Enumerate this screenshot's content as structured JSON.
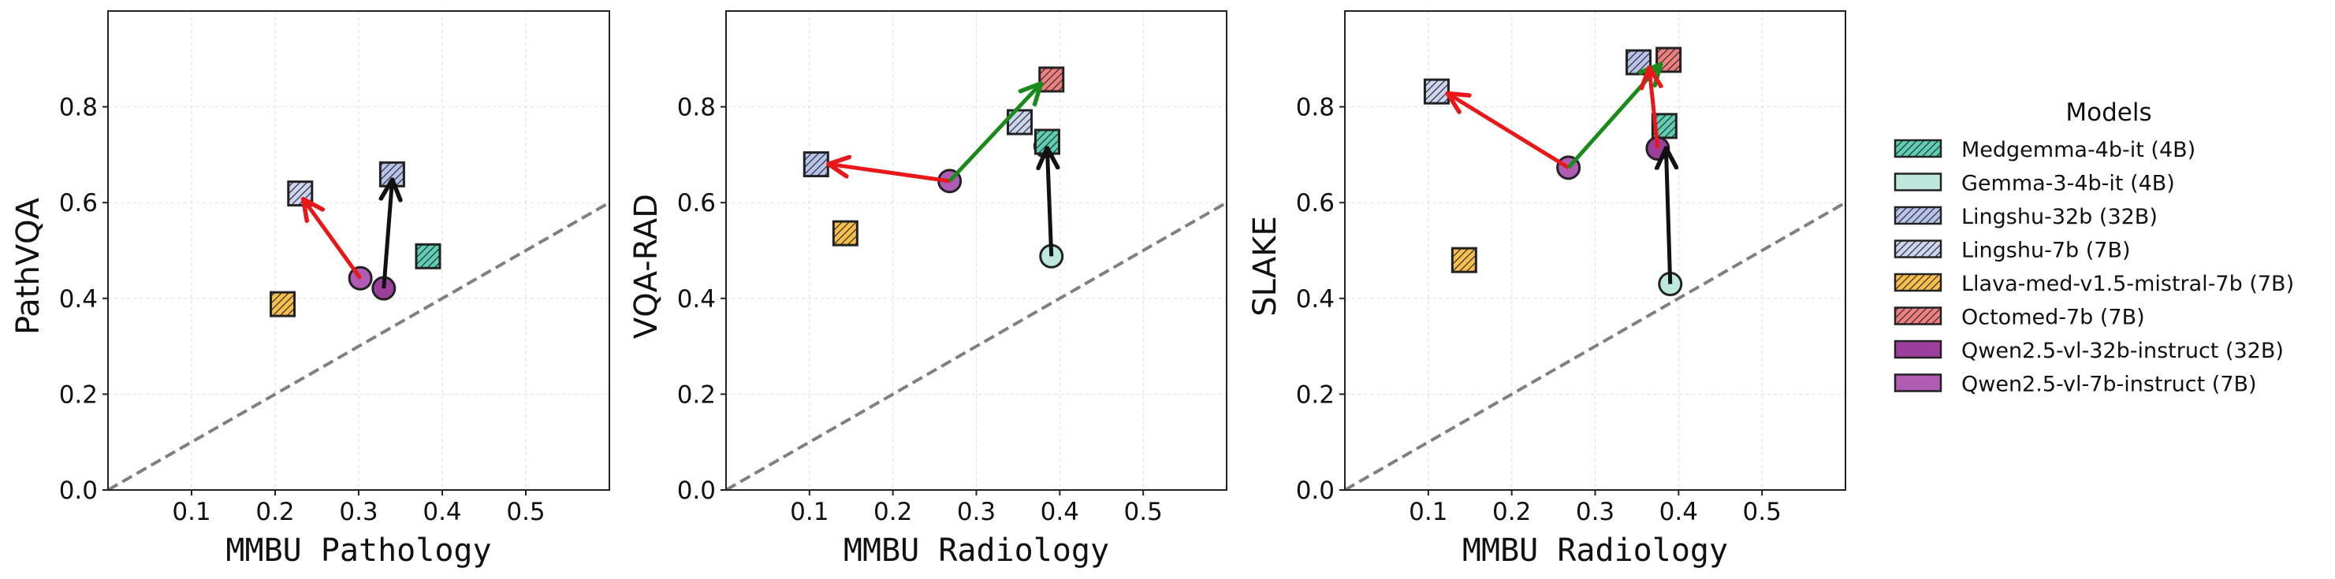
{
  "chart_data": {
    "legend": {
      "title": "Models",
      "placement": "right",
      "items": [
        {
          "name": "Medgemma-4b-it (4B)",
          "color": "#5ccfb4",
          "marker": "square",
          "hatch": true
        },
        {
          "name": "Gemma-3-4b-it (4B)",
          "color": "#bfe8dc",
          "marker": "circle",
          "hatch": false
        },
        {
          "name": "Lingshu-32b (32B)",
          "color": "#b8c3ec",
          "marker": "square",
          "hatch": true
        },
        {
          "name": "Lingshu-7b (7B)",
          "color": "#cdd5f2",
          "marker": "square",
          "hatch": true
        },
        {
          "name": "Llava-med-v1.5-mistral-7b (7B)",
          "color": "#f8bf4c",
          "marker": "square",
          "hatch": true
        },
        {
          "name": "Octomed-7b (7B)",
          "color": "#f07f7f",
          "marker": "square",
          "hatch": true
        },
        {
          "name": "Qwen2.5-vl-32b-instruct (32B)",
          "color": "#9c3f9c",
          "marker": "circle",
          "hatch": false
        },
        {
          "name": "Qwen2.5-vl-7b-instruct (7B)",
          "color": "#b05cb4",
          "marker": "circle",
          "hatch": false
        }
      ]
    },
    "panels": [
      {
        "type": "scatter",
        "xlabel": "MMBU Pathology",
        "ylabel": "PathVQA",
        "xlim": [
          0,
          0.6
        ],
        "ylim": [
          0,
          1.0
        ],
        "xticks": [
          "0.1",
          "0.2",
          "0.3",
          "0.4",
          "0.5"
        ],
        "yticks": [
          "0.0",
          "0.2",
          "0.4",
          "0.6",
          "0.8"
        ],
        "grid": true,
        "diagonal": true,
        "points": [
          {
            "model": "Llava-med-v1.5-mistral-7b (7B)",
            "x": 0.209,
            "y": 0.388
          },
          {
            "model": "Medgemma-4b-it (4B)",
            "x": 0.383,
            "y": 0.488
          },
          {
            "model": "Qwen2.5-vl-7b-instruct (7B)",
            "x": 0.302,
            "y": 0.442
          },
          {
            "model": "Qwen2.5-vl-32b-instruct (32B)",
            "x": 0.33,
            "y": 0.421
          },
          {
            "model": "Lingshu-7b (7B)",
            "x": 0.23,
            "y": 0.619
          },
          {
            "model": "Lingshu-32b (32B)",
            "x": 0.34,
            "y": 0.659
          }
        ],
        "arrows": [
          {
            "from": [
              0.302,
              0.442
            ],
            "to": [
              0.235,
              0.604
            ],
            "color": "#e8171a"
          },
          {
            "from": [
              0.33,
              0.421
            ],
            "to": [
              0.34,
              0.644
            ],
            "color": "#111111"
          }
        ]
      },
      {
        "type": "scatter",
        "xlabel": "MMBU Radiology",
        "ylabel": "VQA-RAD",
        "xlim": [
          0,
          0.6
        ],
        "ylim": [
          0,
          1.0
        ],
        "xticks": [
          "0.1",
          "0.2",
          "0.3",
          "0.4",
          "0.5"
        ],
        "yticks": [
          "0.0",
          "0.2",
          "0.4",
          "0.6",
          "0.8"
        ],
        "grid": true,
        "diagonal": true,
        "points": [
          {
            "model": "Llava-med-v1.5-mistral-7b (7B)",
            "x": 0.143,
            "y": 0.536
          },
          {
            "model": "Gemma-3-4b-it (4B)",
            "x": 0.39,
            "y": 0.488
          },
          {
            "model": "Qwen2.5-vl-32b-instruct (32B)",
            "x": 0.383,
            "y": 0.718
          },
          {
            "model": "Medgemma-4b-it (4B)",
            "x": 0.385,
            "y": 0.727
          },
          {
            "model": "Qwen2.5-vl-7b-instruct (7B)",
            "x": 0.268,
            "y": 0.645
          },
          {
            "model": "Lingshu-7b (7B)",
            "x": 0.352,
            "y": 0.768
          },
          {
            "model": "Lingshu-32b (32B)",
            "x": 0.108,
            "y": 0.68
          },
          {
            "model": "Octomed-7b (7B)",
            "x": 0.39,
            "y": 0.857
          }
        ],
        "arrows": [
          {
            "from": [
              0.268,
              0.645
            ],
            "to": [
              0.125,
              0.68
            ],
            "color": "#e8171a"
          },
          {
            "from": [
              0.268,
              0.645
            ],
            "to": [
              0.376,
              0.846
            ],
            "color": "#1a8a1a"
          },
          {
            "from": [
              0.39,
              0.488
            ],
            "to": [
              0.385,
              0.71
            ],
            "color": "#111111"
          }
        ]
      },
      {
        "type": "scatter",
        "xlabel": "MMBU Radiology",
        "ylabel": "SLAKE",
        "xlim": [
          0,
          0.6
        ],
        "ylim": [
          0,
          1.0
        ],
        "xticks": [
          "0.1",
          "0.2",
          "0.3",
          "0.4",
          "0.5"
        ],
        "yticks": [
          "0.0",
          "0.2",
          "0.4",
          "0.6",
          "0.8"
        ],
        "grid": true,
        "diagonal": true,
        "points": [
          {
            "model": "Llava-med-v1.5-mistral-7b (7B)",
            "x": 0.143,
            "y": 0.48
          },
          {
            "model": "Gemma-3-4b-it (4B)",
            "x": 0.39,
            "y": 0.43
          },
          {
            "model": "Medgemma-4b-it (4B)",
            "x": 0.383,
            "y": 0.76
          },
          {
            "model": "Qwen2.5-vl-7b-instruct (7B)",
            "x": 0.268,
            "y": 0.673
          },
          {
            "model": "Qwen2.5-vl-32b-instruct (32B)",
            "x": 0.375,
            "y": 0.713
          },
          {
            "model": "Lingshu-7b (7B)",
            "x": 0.11,
            "y": 0.832
          },
          {
            "model": "Lingshu-32b (32B)",
            "x": 0.352,
            "y": 0.893
          },
          {
            "model": "Octomed-7b (7B)",
            "x": 0.388,
            "y": 0.898
          }
        ],
        "arrows": [
          {
            "from": [
              0.268,
              0.673
            ],
            "to": [
              0.125,
              0.826
            ],
            "color": "#e8171a"
          },
          {
            "from": [
              0.268,
              0.673
            ],
            "to": [
              0.377,
              0.886
            ],
            "color": "#1a8a1a"
          },
          {
            "from": [
              0.375,
              0.713
            ],
            "to": [
              0.365,
              0.878
            ],
            "color": "#e8171a"
          },
          {
            "from": [
              0.39,
              0.43
            ],
            "to": [
              0.385,
              0.71
            ],
            "color": "#111111"
          }
        ]
      }
    ]
  }
}
